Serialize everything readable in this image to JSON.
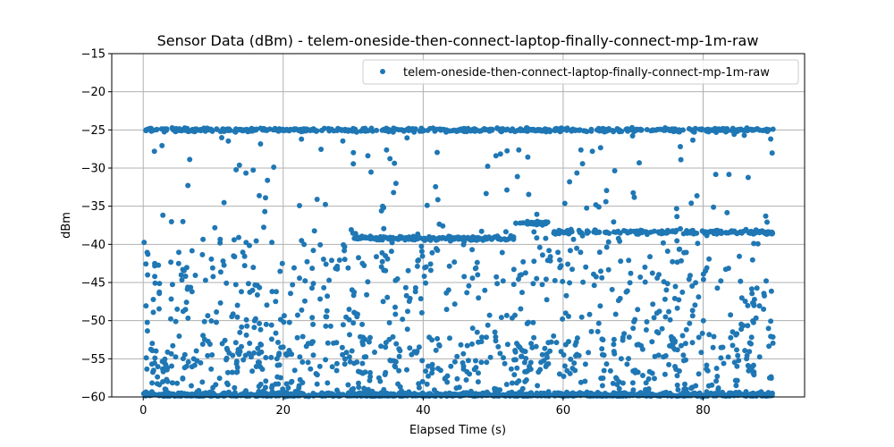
{
  "chart_data": {
    "type": "scatter",
    "title": "Sensor Data (dBm) - telem-oneside-then-connect-laptop-finally-connect-mp-1m-raw",
    "xlabel": "Elapsed Time (s)",
    "ylabel": "dBm",
    "xlim": [
      -4.5,
      94.5
    ],
    "ylim": [
      -60,
      -15
    ],
    "xticks": [
      0,
      20,
      40,
      60,
      80
    ],
    "yticks": [
      -60,
      -55,
      -50,
      -45,
      -40,
      -35,
      -30,
      -25,
      -20,
      -15
    ],
    "grid": true,
    "legend_position": "top-right",
    "series": [
      {
        "name": "telem-oneside-then-connect-laptop-finally-connect-mp-1m-raw",
        "color": "#1f77b4",
        "bands": [
          {
            "label": "upper",
            "x_range": [
              0,
              90
            ],
            "center": -25,
            "spread": 0.35,
            "count": 520
          },
          {
            "label": "lower",
            "x_range": [
              0,
              90
            ],
            "center": -59.5,
            "spread": 0.45,
            "count": 900
          },
          {
            "label": "mid-a",
            "x_range": [
              30,
              53
            ],
            "center": -39.2,
            "spread": 0.4,
            "count": 150
          },
          {
            "label": "mid-b",
            "x_range": [
              53,
              58
            ],
            "center": -37.2,
            "spread": 0.3,
            "count": 40
          },
          {
            "label": "mid-c",
            "x_range": [
              58,
              90
            ],
            "center": -38.4,
            "spread": 0.4,
            "count": 170
          }
        ],
        "scatter_points": 1100,
        "scatter_range": [
          -60,
          -25
        ]
      }
    ]
  }
}
